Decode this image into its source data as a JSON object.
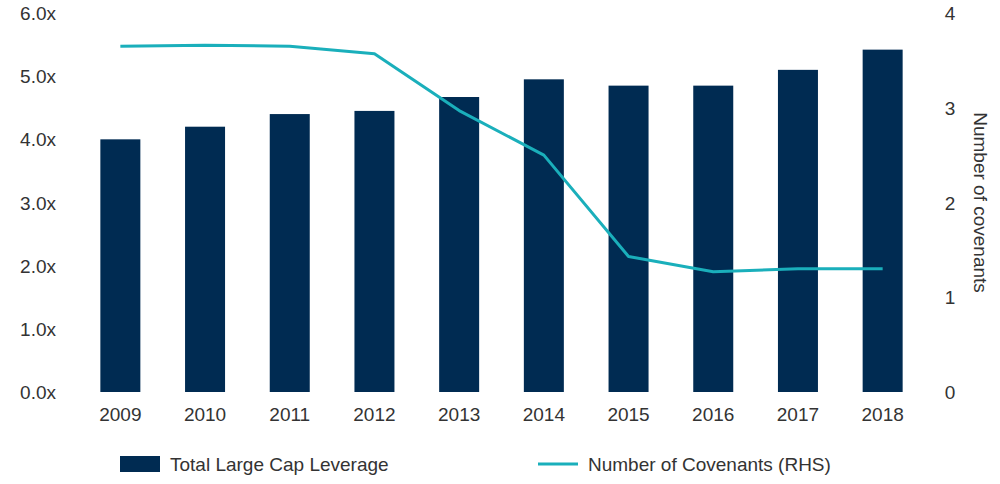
{
  "chart_data": {
    "type": "bar",
    "categories": [
      "2009",
      "2010",
      "2011",
      "2012",
      "2013",
      "2014",
      "2015",
      "2016",
      "2017",
      "2018"
    ],
    "series": [
      {
        "name": "Total Large Cap Leverage",
        "type": "bar",
        "color": "#002b52",
        "values": [
          4.0,
          4.2,
          4.4,
          4.45,
          4.67,
          4.95,
          4.85,
          4.85,
          5.1,
          5.42
        ]
      },
      {
        "name": "Number of Covenants (RHS)",
        "type": "line",
        "axis": "y2",
        "color": "#1aafbb",
        "values": [
          3.65,
          3.66,
          3.65,
          3.57,
          2.97,
          2.5,
          1.43,
          1.27,
          1.3,
          1.3
        ]
      }
    ],
    "ylim": [
      0,
      6
    ],
    "yticks": [
      {
        "value": 0,
        "label": "0.0x"
      },
      {
        "value": 1,
        "label": "1.0x"
      },
      {
        "value": 2,
        "label": "2.0x"
      },
      {
        "value": 3,
        "label": "3.0x"
      },
      {
        "value": 4,
        "label": "4.0x"
      },
      {
        "value": 5,
        "label": "5.0x"
      },
      {
        "value": 6,
        "label": "6.0x"
      }
    ],
    "y2lim": [
      0,
      4
    ],
    "y2ticks": [
      0,
      1,
      2,
      3,
      4
    ],
    "y2label": "Number of covenants",
    "grid": false,
    "legend": "bottom"
  }
}
